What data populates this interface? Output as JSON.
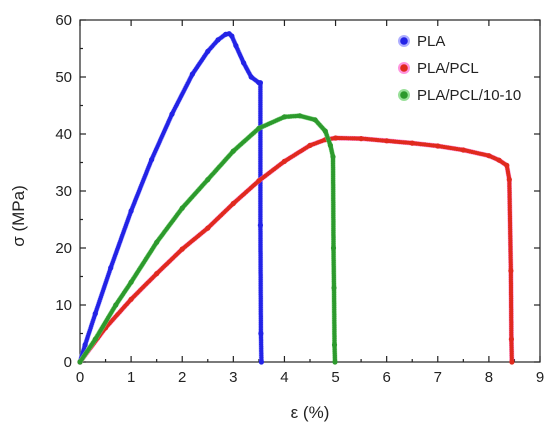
{
  "chart_data": {
    "type": "line",
    "title": "",
    "xlabel": "ε (%)",
    "ylabel": "σ (MPa)",
    "xlim": [
      0,
      9
    ],
    "ylim": [
      0,
      60
    ],
    "xticks": [
      0,
      1,
      2,
      3,
      4,
      5,
      6,
      7,
      8,
      9
    ],
    "yticks": [
      0,
      10,
      20,
      30,
      40,
      50,
      60
    ],
    "grid": false,
    "legend_position": "top-right",
    "series": [
      {
        "name": "PLA",
        "color": "#2323e6",
        "halo": "#9a9aff",
        "x": [
          0.0,
          0.1,
          0.3,
          0.6,
          1.0,
          1.4,
          1.8,
          2.2,
          2.5,
          2.7,
          2.85,
          2.92,
          2.97,
          3.05,
          3.2,
          3.35,
          3.5,
          3.53,
          3.53,
          3.54,
          3.55
        ],
        "y": [
          0.0,
          3.0,
          8.5,
          16.5,
          26.5,
          35.5,
          43.5,
          50.5,
          54.5,
          56.5,
          57.5,
          57.6,
          57.2,
          55.5,
          52.5,
          50.0,
          49.0,
          49.0,
          24.0,
          5.0,
          0.0
        ]
      },
      {
        "name": "PLA/PCL",
        "color": "#e02a1e",
        "halo": "#ff7ad6",
        "x": [
          0.0,
          0.5,
          1.0,
          1.5,
          2.0,
          2.5,
          3.0,
          3.5,
          4.0,
          4.5,
          4.8,
          5.0,
          5.5,
          6.0,
          6.5,
          7.0,
          7.5,
          8.0,
          8.2,
          8.35,
          8.4,
          8.43,
          8.44,
          8.45
        ],
        "y": [
          0.0,
          6.0,
          11.0,
          15.5,
          19.8,
          23.5,
          27.8,
          31.8,
          35.2,
          38.0,
          39.0,
          39.3,
          39.2,
          38.8,
          38.4,
          37.9,
          37.2,
          36.2,
          35.4,
          34.5,
          32.0,
          16.0,
          4.0,
          0.0
        ]
      },
      {
        "name": "PLA/PCL/10-10",
        "color": "#2d9a2d",
        "halo": "#7fd87f",
        "x": [
          0.0,
          0.3,
          0.7,
          1.0,
          1.5,
          2.0,
          2.5,
          3.0,
          3.5,
          4.0,
          4.3,
          4.6,
          4.8,
          4.9,
          4.95,
          4.96,
          4.97,
          4.98,
          4.99
        ],
        "y": [
          0.0,
          4.0,
          10.0,
          14.0,
          21.0,
          27.0,
          32.0,
          37.0,
          41.0,
          43.0,
          43.2,
          42.5,
          40.5,
          38.0,
          36.0,
          20.0,
          13.0,
          3.0,
          0.0
        ]
      }
    ]
  }
}
